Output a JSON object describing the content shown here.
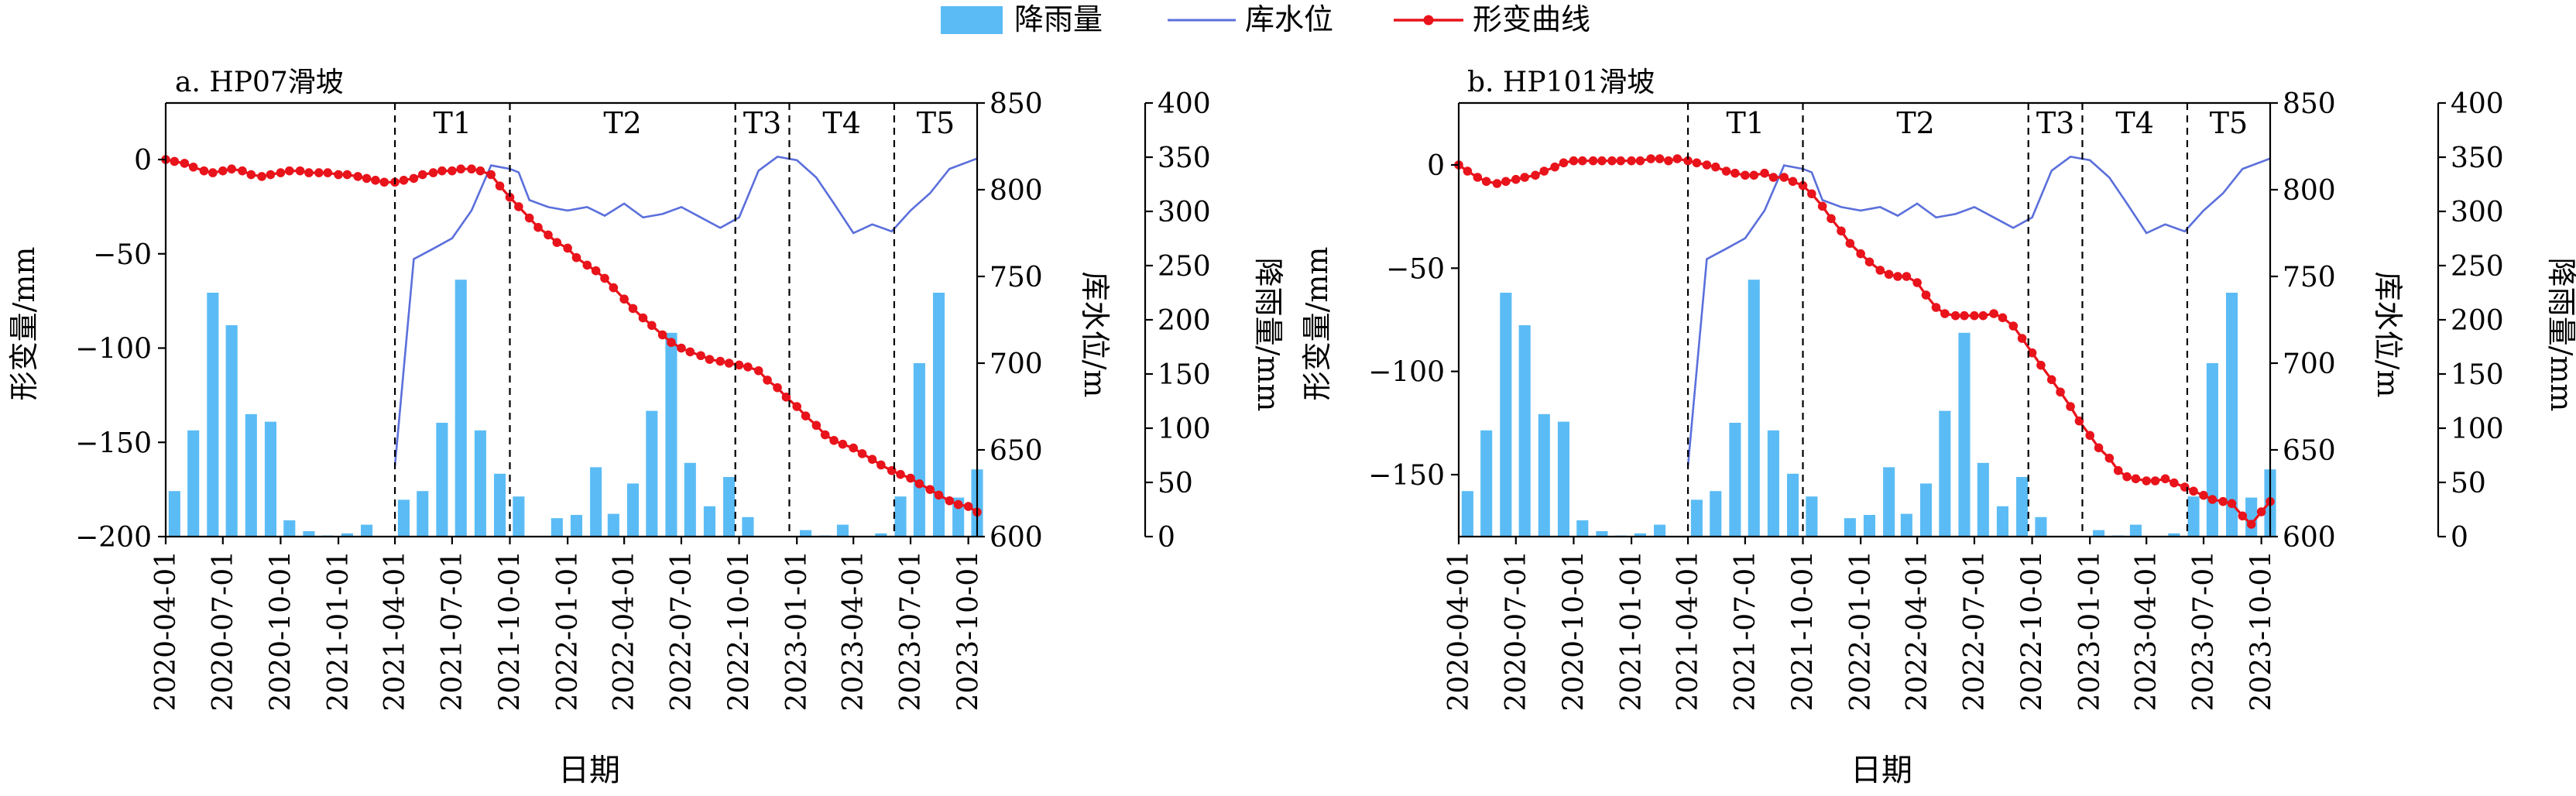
{
  "legend": {
    "rain_label": "降雨量",
    "water_label": "库水位",
    "deform_label": "形变曲线"
  },
  "colors": {
    "rain": "#5bbcf5",
    "water": "#5b6fdb",
    "deform": "#e8131b"
  },
  "chart_data": [
    {
      "type": "line",
      "panel_label": "a. HP07滑坡",
      "xlabel": "日期",
      "ylabel_left": "形变量/mm",
      "ylabel_water": "库水位/m",
      "ylabel_rain": "降雨量/mm",
      "x_ticks": [
        "2020-04-01",
        "2020-07-01",
        "2020-10-01",
        "2021-01-01",
        "2021-04-01",
        "2021-07-01",
        "2021-10-01",
        "2022-01-01",
        "2022-04-01",
        "2022-07-01",
        "2022-10-01",
        "2023-01-01",
        "2023-04-01",
        "2023-07-01",
        "2023-10-01"
      ],
      "ylim_left": [
        -200,
        30
      ],
      "y_ticks_left": [
        0,
        -50,
        -100,
        -150,
        -200
      ],
      "ylim_water": [
        600,
        850
      ],
      "y_ticks_water": [
        600,
        650,
        700,
        750,
        800,
        850
      ],
      "ylim_rain": [
        0,
        400
      ],
      "y_ticks_rain": [
        0,
        50,
        100,
        150,
        200,
        250,
        300,
        350,
        400
      ],
      "periods": [
        {
          "label": "T1",
          "start": "2021-04-01",
          "end": "2021-10-01"
        },
        {
          "label": "T2",
          "start": "2021-10-01",
          "end": "2022-09-25"
        },
        {
          "label": "T3",
          "start": "2022-09-25",
          "end": "2022-12-20"
        },
        {
          "label": "T4",
          "start": "2022-12-20",
          "end": "2023-06-05"
        },
        {
          "label": "T5",
          "start": "2023-06-05",
          "end": "2023-10-15"
        }
      ],
      "rainfall": {
        "dates": [
          "2020-04-15",
          "2020-05-15",
          "2020-06-15",
          "2020-07-15",
          "2020-08-15",
          "2020-09-15",
          "2020-10-15",
          "2020-11-15",
          "2020-12-15",
          "2021-01-15",
          "2021-02-15",
          "2021-03-15",
          "2021-04-15",
          "2021-05-15",
          "2021-06-15",
          "2021-07-15",
          "2021-08-15",
          "2021-09-15",
          "2021-10-15",
          "2021-11-15",
          "2021-12-15",
          "2022-01-15",
          "2022-02-15",
          "2022-03-15",
          "2022-04-15",
          "2022-05-15",
          "2022-06-15",
          "2022-07-15",
          "2022-08-15",
          "2022-09-15",
          "2022-10-15",
          "2022-11-15",
          "2022-12-15",
          "2023-01-15",
          "2023-02-15",
          "2023-03-15",
          "2023-04-15",
          "2023-05-15",
          "2023-06-15",
          "2023-07-15",
          "2023-08-15",
          "2023-09-15",
          "2023-10-15"
        ],
        "values": [
          42,
          98,
          225,
          195,
          113,
          106,
          15,
          5,
          1,
          3,
          11,
          0,
          34,
          42,
          105,
          237,
          98,
          58,
          37,
          0,
          17,
          20,
          64,
          21,
          49,
          116,
          188,
          68,
          28,
          55,
          18,
          0,
          0,
          6,
          1,
          11,
          0,
          3,
          37,
          160,
          225,
          36,
          62
        ]
      },
      "water_level": {
        "dates": [
          "2021-04-01",
          "2021-05-01",
          "2021-06-01",
          "2021-07-01",
          "2021-08-01",
          "2021-09-01",
          "2021-10-01",
          "2021-10-15",
          "2021-11-01",
          "2021-12-01",
          "2022-01-01",
          "2022-02-01",
          "2022-03-01",
          "2022-04-01",
          "2022-05-01",
          "2022-06-01",
          "2022-07-01",
          "2022-08-01",
          "2022-09-01",
          "2022-10-01",
          "2022-11-01",
          "2022-12-01",
          "2023-01-01",
          "2023-02-01",
          "2023-03-01",
          "2023-04-01",
          "2023-05-01",
          "2023-06-01",
          "2023-07-01",
          "2023-08-01",
          "2023-09-01",
          "2023-10-15"
        ],
        "values": [
          641,
          760,
          766,
          772,
          788,
          814,
          812,
          810,
          794,
          790,
          788,
          790,
          785,
          792,
          784,
          786,
          790,
          784,
          778,
          784,
          811,
          819,
          817,
          807,
          792,
          775,
          780,
          776,
          788,
          798,
          812,
          818
        ]
      },
      "deformation": {
        "dates": [
          "2020-04-01",
          "2020-04-15",
          "2020-05-01",
          "2020-05-15",
          "2020-06-01",
          "2020-06-15",
          "2020-07-01",
          "2020-07-15",
          "2020-08-01",
          "2020-08-15",
          "2020-09-01",
          "2020-09-15",
          "2020-10-01",
          "2020-10-15",
          "2020-11-01",
          "2020-11-15",
          "2020-12-01",
          "2020-12-15",
          "2021-01-01",
          "2021-01-15",
          "2021-02-01",
          "2021-02-15",
          "2021-03-01",
          "2021-03-15",
          "2021-04-01",
          "2021-04-15",
          "2021-05-01",
          "2021-05-15",
          "2021-06-01",
          "2021-06-15",
          "2021-07-01",
          "2021-07-15",
          "2021-08-01",
          "2021-08-15",
          "2021-09-01",
          "2021-09-15",
          "2021-10-01",
          "2021-10-15",
          "2021-11-01",
          "2021-11-15",
          "2021-12-01",
          "2021-12-15",
          "2022-01-01",
          "2022-01-15",
          "2022-02-01",
          "2022-02-15",
          "2022-03-01",
          "2022-03-15",
          "2022-04-01",
          "2022-04-15",
          "2022-05-01",
          "2022-05-15",
          "2022-06-01",
          "2022-06-15",
          "2022-07-01",
          "2022-07-15",
          "2022-08-01",
          "2022-08-15",
          "2022-09-01",
          "2022-09-15",
          "2022-10-01",
          "2022-10-15",
          "2022-11-01",
          "2022-11-15",
          "2022-12-01",
          "2022-12-15",
          "2023-01-01",
          "2023-01-15",
          "2023-02-01",
          "2023-02-15",
          "2023-03-01",
          "2023-03-15",
          "2023-04-01",
          "2023-04-15",
          "2023-05-01",
          "2023-05-15",
          "2023-06-01",
          "2023-06-15",
          "2023-07-01",
          "2023-07-15",
          "2023-08-01",
          "2023-08-15",
          "2023-09-01",
          "2023-09-15",
          "2023-10-01",
          "2023-10-15"
        ],
        "values": [
          0,
          -1,
          -2,
          -4,
          -6,
          -7,
          -6,
          -5,
          -6,
          -8,
          -9,
          -8,
          -7,
          -6,
          -6,
          -7,
          -7,
          -7,
          -8,
          -8,
          -9,
          -10,
          -11,
          -12,
          -12,
          -11,
          -10,
          -8,
          -7,
          -6,
          -6,
          -5,
          -5,
          -6,
          -8,
          -14,
          -20,
          -25,
          -31,
          -36,
          -40,
          -44,
          -47,
          -52,
          -56,
          -59,
          -63,
          -68,
          -74,
          -79,
          -84,
          -88,
          -93,
          -97,
          -100,
          -102,
          -104,
          -106,
          -107,
          -108,
          -109,
          -110,
          -112,
          -117,
          -121,
          -126,
          -131,
          -136,
          -141,
          -146,
          -149,
          -151,
          -153,
          -156,
          -159,
          -162,
          -165,
          -167,
          -169,
          -172,
          -175,
          -178,
          -181,
          -183,
          -184,
          -187
        ]
      }
    },
    {
      "type": "line",
      "panel_label": "b. HP101滑坡",
      "xlabel": "日期",
      "ylabel_left": "形变量/mm",
      "ylabel_water": "库水位/m",
      "ylabel_rain": "降雨量/mm",
      "x_ticks": [
        "2020-04-01",
        "2020-07-01",
        "2020-10-01",
        "2021-01-01",
        "2021-04-01",
        "2021-07-01",
        "2021-10-01",
        "2022-01-01",
        "2022-04-01",
        "2022-07-01",
        "2022-10-01",
        "2023-01-01",
        "2023-04-01",
        "2023-07-01",
        "2023-10-01"
      ],
      "ylim_left": [
        -180,
        30
      ],
      "y_ticks_left": [
        0,
        -50,
        -100,
        -150
      ],
      "ylim_water": [
        600,
        850
      ],
      "y_ticks_water": [
        600,
        650,
        700,
        750,
        800,
        850
      ],
      "ylim_rain": [
        0,
        400
      ],
      "y_ticks_rain": [
        0,
        50,
        100,
        150,
        200,
        250,
        300,
        350,
        400
      ],
      "periods": [
        {
          "label": "T1",
          "start": "2021-04-01",
          "end": "2021-10-01"
        },
        {
          "label": "T2",
          "start": "2021-10-01",
          "end": "2022-09-25"
        },
        {
          "label": "T3",
          "start": "2022-09-25",
          "end": "2022-12-20"
        },
        {
          "label": "T4",
          "start": "2022-12-20",
          "end": "2023-06-05"
        },
        {
          "label": "T5",
          "start": "2023-06-05",
          "end": "2023-10-15"
        }
      ],
      "rainfall": {
        "dates": [
          "2020-04-15",
          "2020-05-15",
          "2020-06-15",
          "2020-07-15",
          "2020-08-15",
          "2020-09-15",
          "2020-10-15",
          "2020-11-15",
          "2020-12-15",
          "2021-01-15",
          "2021-02-15",
          "2021-03-15",
          "2021-04-15",
          "2021-05-15",
          "2021-06-15",
          "2021-07-15",
          "2021-08-15",
          "2021-09-15",
          "2021-10-15",
          "2021-11-15",
          "2021-12-15",
          "2022-01-15",
          "2022-02-15",
          "2022-03-15",
          "2022-04-15",
          "2022-05-15",
          "2022-06-15",
          "2022-07-15",
          "2022-08-15",
          "2022-09-15",
          "2022-10-15",
          "2022-11-15",
          "2022-12-15",
          "2023-01-15",
          "2023-02-15",
          "2023-03-15",
          "2023-04-15",
          "2023-05-15",
          "2023-06-15",
          "2023-07-15",
          "2023-08-15",
          "2023-09-15",
          "2023-10-15"
        ],
        "values": [
          42,
          98,
          225,
          195,
          113,
          106,
          15,
          5,
          1,
          3,
          11,
          0,
          34,
          42,
          105,
          237,
          98,
          58,
          37,
          0,
          17,
          20,
          64,
          21,
          49,
          116,
          188,
          68,
          28,
          55,
          18,
          0,
          0,
          6,
          1,
          11,
          0,
          3,
          37,
          160,
          225,
          36,
          62
        ]
      },
      "water_level": {
        "dates": [
          "2021-04-01",
          "2021-05-01",
          "2021-06-01",
          "2021-07-01",
          "2021-08-01",
          "2021-09-01",
          "2021-10-01",
          "2021-10-15",
          "2021-11-01",
          "2021-12-01",
          "2022-01-01",
          "2022-02-01",
          "2022-03-01",
          "2022-04-01",
          "2022-05-01",
          "2022-06-01",
          "2022-07-01",
          "2022-08-01",
          "2022-09-01",
          "2022-10-01",
          "2022-11-01",
          "2022-12-01",
          "2023-01-01",
          "2023-02-01",
          "2023-03-01",
          "2023-04-01",
          "2023-05-01",
          "2023-06-01",
          "2023-07-01",
          "2023-08-01",
          "2023-09-01",
          "2023-10-15"
        ],
        "values": [
          641,
          760,
          766,
          772,
          788,
          814,
          812,
          810,
          794,
          790,
          788,
          790,
          785,
          792,
          784,
          786,
          790,
          784,
          778,
          784,
          811,
          819,
          817,
          807,
          792,
          775,
          780,
          776,
          788,
          798,
          812,
          818
        ]
      },
      "deformation": {
        "dates": [
          "2020-04-01",
          "2020-04-15",
          "2020-05-01",
          "2020-05-15",
          "2020-06-01",
          "2020-06-15",
          "2020-07-01",
          "2020-07-15",
          "2020-08-01",
          "2020-08-15",
          "2020-09-01",
          "2020-09-15",
          "2020-10-01",
          "2020-10-15",
          "2020-11-01",
          "2020-11-15",
          "2020-12-01",
          "2020-12-15",
          "2021-01-01",
          "2021-01-15",
          "2021-02-01",
          "2021-02-15",
          "2021-03-01",
          "2021-03-15",
          "2021-04-01",
          "2021-04-15",
          "2021-05-01",
          "2021-05-15",
          "2021-06-01",
          "2021-06-15",
          "2021-07-01",
          "2021-07-15",
          "2021-08-01",
          "2021-08-15",
          "2021-09-01",
          "2021-09-15",
          "2021-10-01",
          "2021-10-15",
          "2021-11-01",
          "2021-11-15",
          "2021-12-01",
          "2021-12-15",
          "2022-01-01",
          "2022-01-15",
          "2022-02-01",
          "2022-02-15",
          "2022-03-01",
          "2022-03-15",
          "2022-04-01",
          "2022-04-15",
          "2022-05-01",
          "2022-05-15",
          "2022-06-01",
          "2022-06-15",
          "2022-07-01",
          "2022-07-15",
          "2022-08-01",
          "2022-08-15",
          "2022-09-01",
          "2022-09-15",
          "2022-10-01",
          "2022-10-15",
          "2022-11-01",
          "2022-11-15",
          "2022-12-01",
          "2022-12-15",
          "2023-01-01",
          "2023-01-15",
          "2023-02-01",
          "2023-02-15",
          "2023-03-01",
          "2023-03-15",
          "2023-04-01",
          "2023-04-15",
          "2023-05-01",
          "2023-05-15",
          "2023-06-01",
          "2023-06-15",
          "2023-07-01",
          "2023-07-15",
          "2023-08-01",
          "2023-08-15",
          "2023-09-01",
          "2023-09-15",
          "2023-10-01",
          "2023-10-15"
        ],
        "values": [
          0,
          -3,
          -6,
          -8,
          -9,
          -8,
          -7,
          -6,
          -5,
          -3,
          -1,
          1,
          2,
          2,
          2,
          2,
          2,
          2,
          2,
          2,
          3,
          3,
          2,
          3,
          2,
          1,
          0,
          -1,
          -3,
          -4,
          -5,
          -5,
          -4,
          -6,
          -6,
          -8,
          -10,
          -14,
          -20,
          -26,
          -32,
          -38,
          -43,
          -47,
          -51,
          -53,
          -54,
          -54,
          -57,
          -63,
          -69,
          -72,
          -73,
          -73,
          -73,
          -73,
          -72,
          -74,
          -78,
          -84,
          -91,
          -97,
          -104,
          -110,
          -117,
          -124,
          -131,
          -137,
          -142,
          -148,
          -151,
          -152,
          -153,
          -153,
          -152,
          -154,
          -156,
          -158,
          -160,
          -162,
          -163,
          -164,
          -170,
          -174,
          -168,
          -163
        ]
      }
    }
  ]
}
